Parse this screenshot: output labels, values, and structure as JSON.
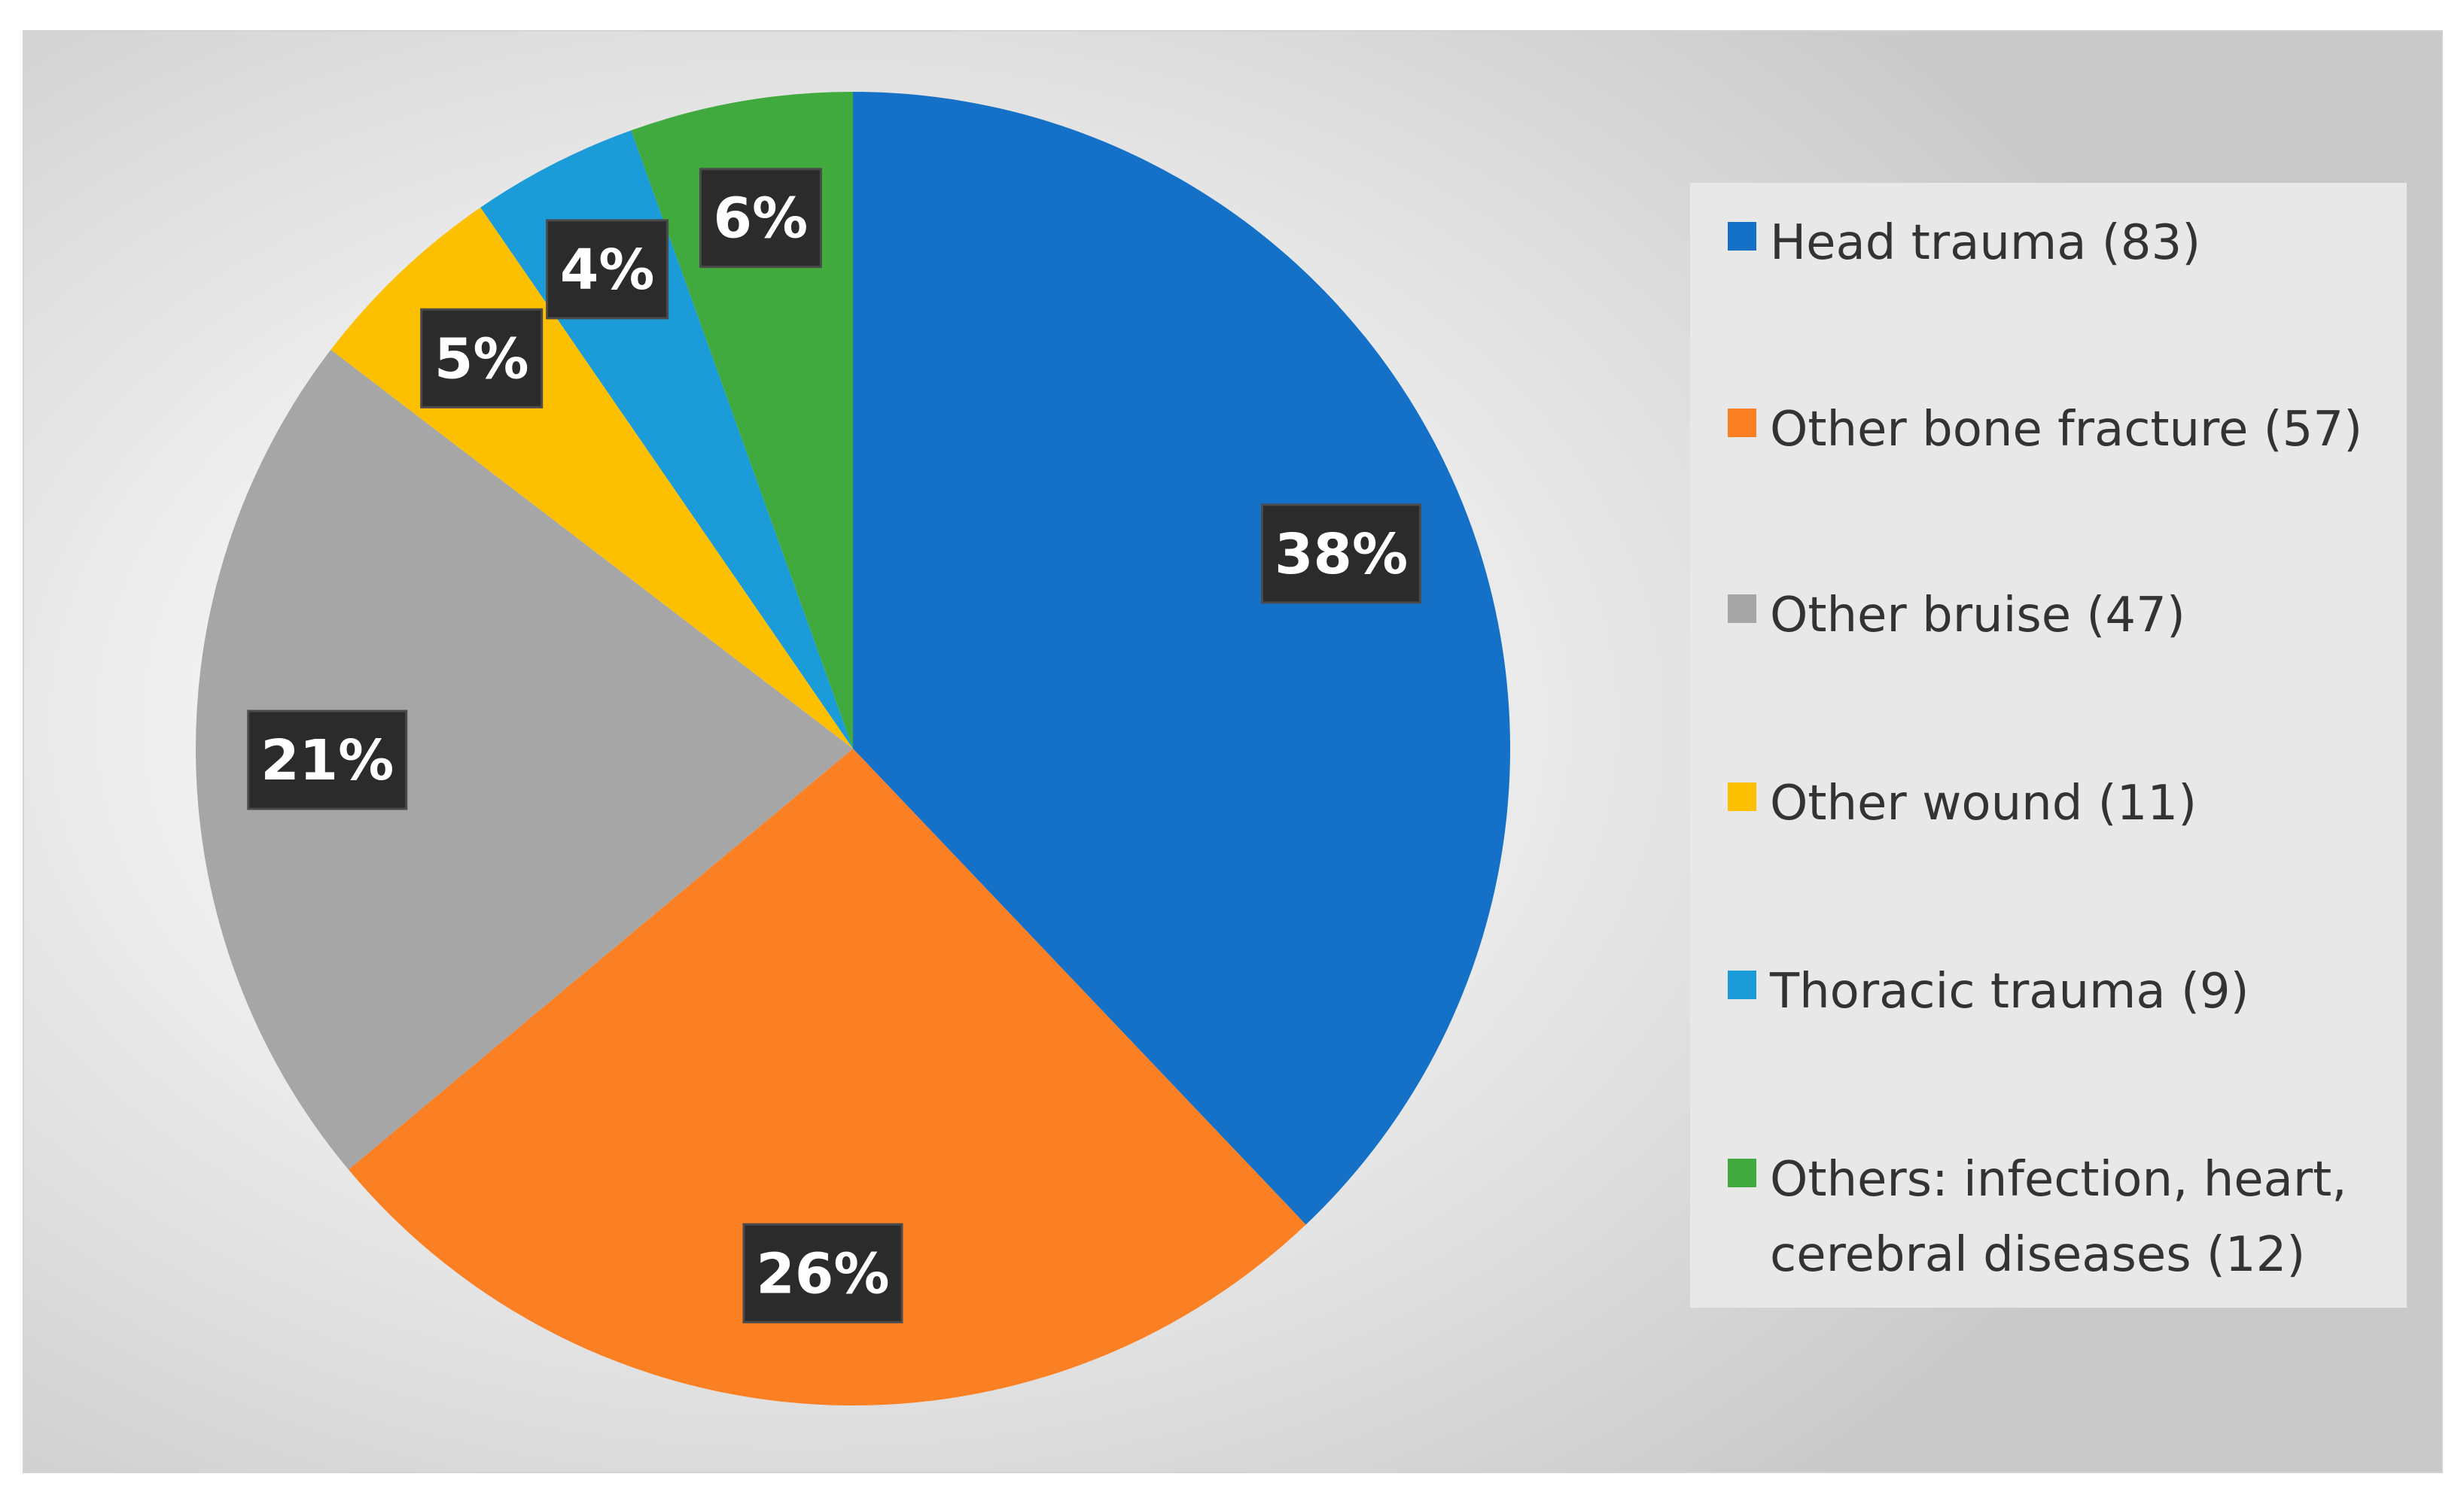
{
  "chart_data": {
    "type": "pie",
    "title": "",
    "slices": [
      {
        "label": "Head trauma (83)",
        "value": 83,
        "percent_label": "38%",
        "color": "#1570C8"
      },
      {
        "label": "Other bone fracture (57)",
        "value": 57,
        "percent_label": "26%",
        "color": "#FB8024"
      },
      {
        "label": "Other bruise (47)",
        "value": 47,
        "percent_label": "21%",
        "color": "#A6A6A6"
      },
      {
        "label": "Other wound (11)",
        "value": 11,
        "percent_label": "5%",
        "color": "#FDC000"
      },
      {
        "label": "Thoracic trauma (9)",
        "value": 9,
        "percent_label": "4%",
        "color": "#1B9BD8"
      },
      {
        "label": "Others: infection, heart, cerebral diseases (12)",
        "value": 12,
        "percent_label": "6%",
        "color": "#41AA3F"
      }
    ],
    "legend_position": "right"
  }
}
